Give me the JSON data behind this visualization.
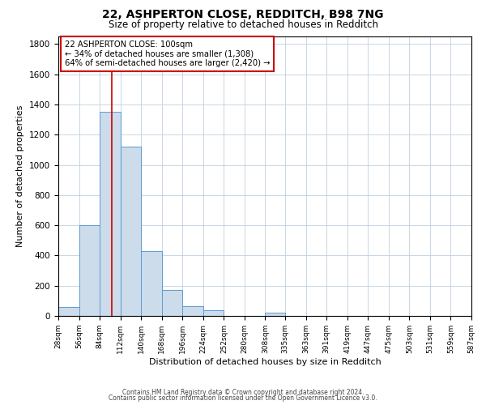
{
  "title": "22, ASHPERTON CLOSE, REDDITCH, B98 7NG",
  "subtitle": "Size of property relative to detached houses in Redditch",
  "xlabel": "Distribution of detached houses by size in Redditch",
  "ylabel": "Number of detached properties",
  "bin_edges": [
    28,
    56,
    84,
    112,
    140,
    168,
    196,
    224,
    252,
    280,
    308,
    335,
    363,
    391,
    419,
    447,
    475,
    503,
    531,
    559,
    587
  ],
  "bin_counts": [
    60,
    600,
    1350,
    1120,
    430,
    170,
    65,
    35,
    0,
    0,
    20,
    0,
    0,
    0,
    0,
    0,
    0,
    0,
    0,
    0
  ],
  "bar_color": "#ccdcea",
  "bar_edge_color": "#5b9bd5",
  "vline_x": 100,
  "vline_color": "#cc0000",
  "annotation_line1": "22 ASHPERTON CLOSE: 100sqm",
  "annotation_line2": "← 34% of detached houses are smaller (1,308)",
  "annotation_line3": "64% of semi-detached houses are larger (2,420) →",
  "annotation_box_color": "#cc0000",
  "ylim": [
    0,
    1850
  ],
  "yticks": [
    0,
    200,
    400,
    600,
    800,
    1000,
    1200,
    1400,
    1600,
    1800
  ],
  "tick_labels": [
    "28sqm",
    "56sqm",
    "84sqm",
    "112sqm",
    "140sqm",
    "168sqm",
    "196sqm",
    "224sqm",
    "252sqm",
    "280sqm",
    "308sqm",
    "335sqm",
    "363sqm",
    "391sqm",
    "419sqm",
    "447sqm",
    "475sqm",
    "503sqm",
    "531sqm",
    "559sqm",
    "587sqm"
  ],
  "footer_line1": "Contains HM Land Registry data © Crown copyright and database right 2024.",
  "footer_line2": "Contains public sector information licensed under the Open Government Licence v3.0.",
  "background_color": "#ffffff",
  "grid_color": "#c0d0e0",
  "title_fontsize": 10,
  "subtitle_fontsize": 8.5,
  "ylabel_fontsize": 8,
  "xlabel_fontsize": 8,
  "tick_fontsize": 6.5,
  "ytick_fontsize": 7.5,
  "footer_fontsize": 5.5
}
